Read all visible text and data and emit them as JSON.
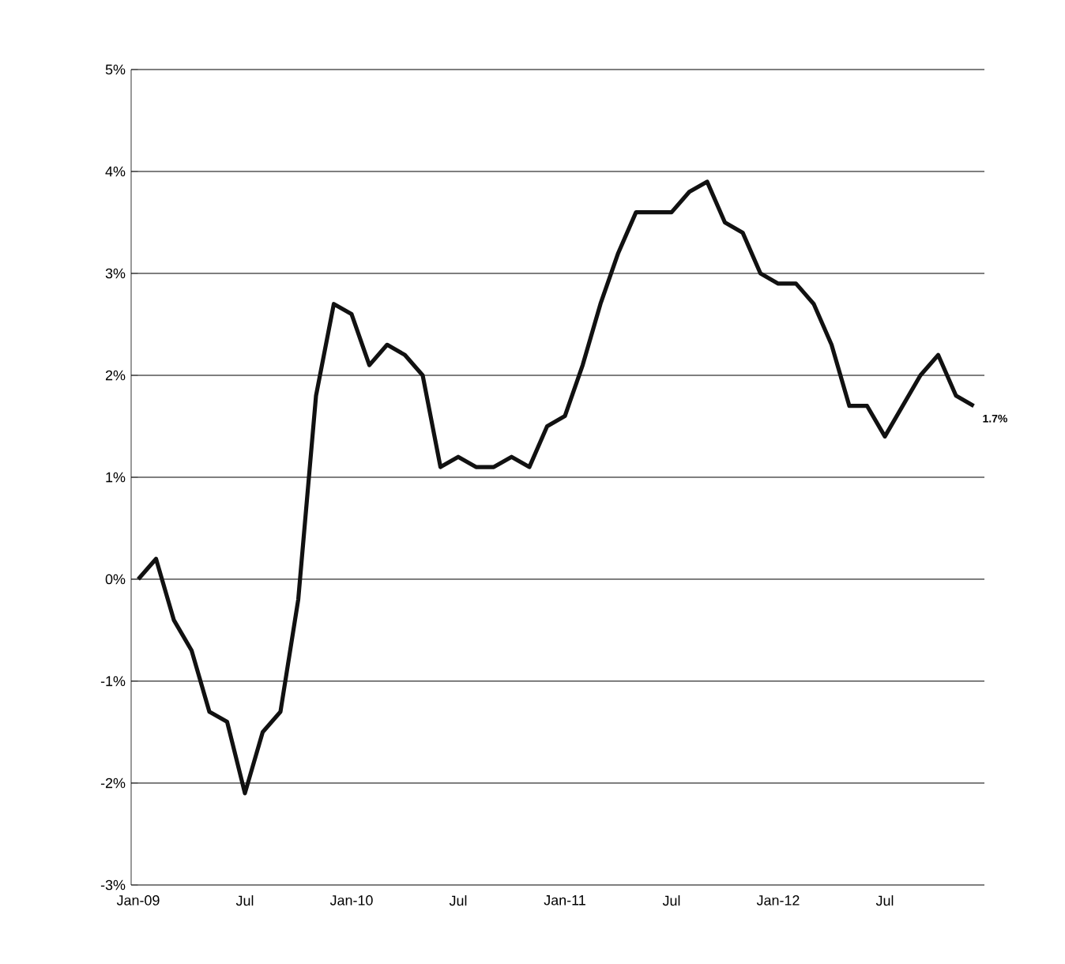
{
  "chart_data": {
    "type": "line",
    "categories": [
      "Jan-09",
      null,
      null,
      null,
      null,
      null,
      "Jul",
      null,
      null,
      null,
      null,
      null,
      "Jan-10",
      null,
      null,
      null,
      null,
      null,
      "Jul",
      null,
      null,
      null,
      null,
      null,
      "Jan-11",
      null,
      null,
      null,
      null,
      null,
      "Jul",
      null,
      null,
      null,
      null,
      null,
      "Jan-12",
      null,
      null,
      null,
      null,
      null,
      "Jul",
      null,
      null,
      null,
      null,
      null
    ],
    "values": [
      0.0,
      0.2,
      -0.4,
      -0.7,
      -1.3,
      -1.4,
      -2.1,
      -1.5,
      -1.3,
      -0.2,
      1.8,
      2.7,
      2.6,
      2.1,
      2.3,
      2.2,
      2.0,
      1.1,
      1.2,
      1.1,
      1.1,
      1.2,
      1.1,
      1.5,
      1.6,
      2.1,
      2.7,
      3.2,
      3.6,
      3.6,
      3.6,
      3.8,
      3.9,
      3.5,
      3.4,
      3.0,
      2.9,
      2.9,
      2.7,
      2.3,
      1.7,
      1.7,
      1.4,
      1.7,
      2.0,
      2.2,
      1.8,
      1.7
    ],
    "value_labels": [
      null,
      null,
      null,
      null,
      null,
      null,
      null,
      null,
      null,
      null,
      null,
      null,
      null,
      null,
      null,
      null,
      null,
      null,
      null,
      null,
      null,
      null,
      null,
      null,
      null,
      null,
      null,
      null,
      null,
      null,
      null,
      null,
      null,
      null,
      null,
      null,
      null,
      null,
      null,
      null,
      null,
      null,
      null,
      null,
      null,
      null,
      null,
      "1.7%"
    ],
    "color": "#111111",
    "ylim": [
      -3,
      5
    ],
    "yticks": [
      {
        "value": -3,
        "label": "-3%"
      },
      {
        "value": -2,
        "label": "-2%"
      },
      {
        "value": -1,
        "label": "-1%"
      },
      {
        "value": 0,
        "label": "0%"
      },
      {
        "value": 1,
        "label": "1%"
      },
      {
        "value": 2,
        "label": "2%"
      },
      {
        "value": 3,
        "label": "3%"
      },
      {
        "value": 4,
        "label": "4%"
      },
      {
        "value": 5,
        "label": "5%"
      }
    ],
    "grid": "y",
    "marker": "none",
    "line_style": "solid"
  }
}
